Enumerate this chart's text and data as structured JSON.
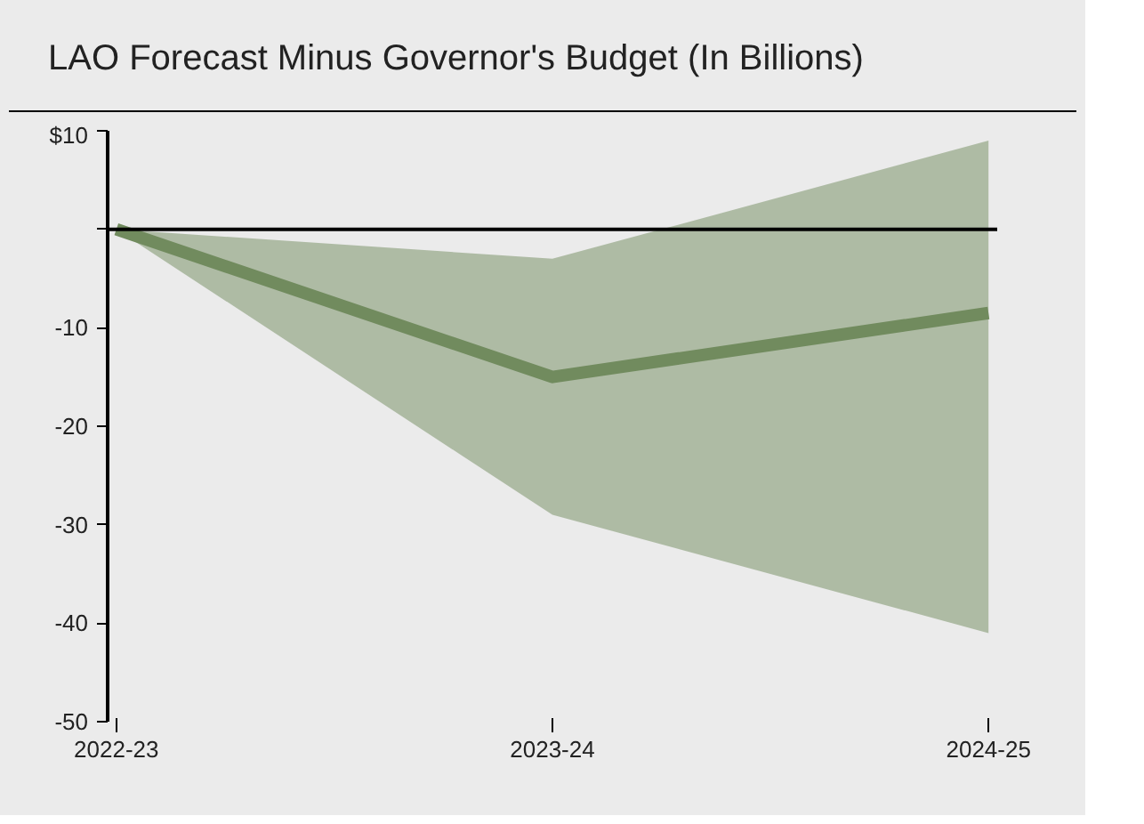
{
  "chart_data": {
    "type": "line",
    "title": "LAO Forecast Minus Governor's Budget (In Billions)",
    "categories": [
      "2022-23",
      "2023-24",
      "2024-25"
    ],
    "series": [
      {
        "color": "#718b5e",
        "values": [
          0,
          -15,
          -8.5
        ],
        "lower": [
          0,
          -29,
          -41
        ],
        "upper": [
          0,
          -3,
          9
        ]
      }
    ],
    "ylim": [
      -50,
      10
    ],
    "yticks": [
      {
        "value": 10,
        "label": "$10"
      },
      {
        "value": 0,
        "label": null
      },
      -10,
      -20,
      -30,
      -40,
      -50
    ],
    "ref_lines": [
      {
        "axis": "y",
        "value": 0,
        "color": "#000000"
      }
    ],
    "grid": false,
    "marker": "none",
    "line_style": "solid"
  }
}
